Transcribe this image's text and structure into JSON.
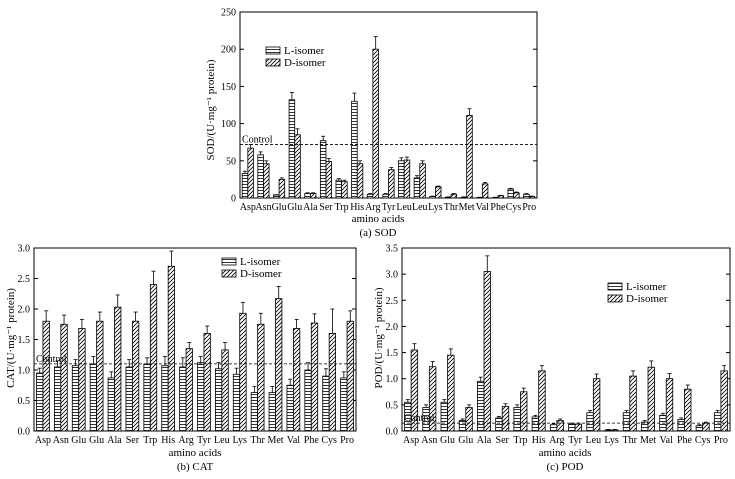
{
  "figure": {
    "legend_l": "L-isomer",
    "legend_d": "D-isomer",
    "control_label": "Control",
    "xlabel": "amino acids"
  },
  "colors": {
    "axis": "#000000",
    "bar_fill": "#ffffff",
    "control_line": "#000000"
  },
  "chart_data": [
    {
      "id": "sod",
      "type": "bar",
      "title": "(a) SOD",
      "xlabel": "amino acids",
      "ylabel": "SOD/(U·mg⁻¹ protein)",
      "ylim": [
        0,
        250
      ],
      "yticks": [
        0,
        50,
        100,
        150,
        200,
        250
      ],
      "ytick_labels": [
        "0",
        "50",
        "100",
        "150",
        "200",
        "250"
      ],
      "control": 72,
      "legend_position": "top-center",
      "categories": [
        "Asp",
        "Asn",
        "Glu",
        "Glu",
        "Ala",
        "Ser",
        "Trp",
        "His",
        "Arg",
        "Tyr",
        "Leu",
        "Leu",
        "Lys",
        "Thr",
        "Met",
        "Val",
        "Phe",
        "Cys",
        "Pro"
      ],
      "series": [
        {
          "name": "L-isomer",
          "pattern": "horizontal",
          "values": [
            33,
            58,
            4,
            132,
            6,
            77,
            24,
            130,
            5,
            5,
            50,
            27,
            2,
            1,
            1,
            0.5,
            0.5,
            12,
            5
          ],
          "errors": [
            3,
            4,
            0.5,
            10,
            1,
            6,
            2,
            11,
            1,
            1,
            4,
            3,
            0.5,
            0.5,
            0.5,
            0.5,
            0.5,
            1,
            1
          ]
        },
        {
          "name": "D-isomer",
          "pattern": "diagonal",
          "values": [
            67,
            46,
            25,
            85,
            6,
            49,
            22,
            46,
            200,
            38,
            51,
            46,
            15,
            5,
            111,
            19,
            3,
            7,
            2
          ],
          "errors": [
            5,
            4,
            2,
            8,
            1,
            4,
            2,
            4,
            17,
            3,
            4,
            4,
            1,
            1,
            9,
            2,
            0.5,
            1,
            0.5
          ]
        }
      ]
    },
    {
      "id": "cat",
      "type": "bar",
      "title": "(b) CAT",
      "xlabel": "amino acids",
      "ylabel": "CAT/(U·mg⁻¹ protein)",
      "ylim": [
        0,
        3.0
      ],
      "yticks": [
        0,
        0.5,
        1.0,
        1.5,
        2.0,
        2.5,
        3.0
      ],
      "ytick_labels": [
        "0.0",
        "0.5",
        "1.0",
        "1.5",
        "2.0",
        "2.5",
        "3.0"
      ],
      "control": 1.1,
      "legend_position": "top-right",
      "categories": [
        "Asp",
        "Asn",
        "Glu",
        "Glu",
        "Ala",
        "Ser",
        "Trp",
        "His",
        "Arg",
        "Tyr",
        "Leu",
        "Lys",
        "Thr",
        "Met",
        "Val",
        "Phe",
        "Cys",
        "Pro"
      ],
      "series": [
        {
          "name": "L-isomer",
          "pattern": "horizontal",
          "values": [
            0.95,
            1.05,
            1.07,
            1.1,
            0.87,
            1.05,
            1.1,
            1.07,
            1.05,
            1.12,
            1.02,
            0.93,
            0.63,
            0.63,
            0.75,
            1.0,
            0.9,
            0.87
          ],
          "errors": [
            0.08,
            0.1,
            0.1,
            0.12,
            0.1,
            0.12,
            0.1,
            0.15,
            0.15,
            0.1,
            0.1,
            0.1,
            0.1,
            0.1,
            0.1,
            0.12,
            0.12,
            0.1
          ]
        },
        {
          "name": "D-isomer",
          "pattern": "diagonal",
          "values": [
            1.8,
            1.75,
            1.68,
            1.8,
            2.03,
            1.8,
            2.4,
            2.7,
            1.35,
            1.6,
            1.33,
            1.93,
            1.75,
            2.17,
            1.68,
            1.77,
            1.6,
            1.8
          ],
          "errors": [
            0.17,
            0.15,
            0.15,
            0.15,
            0.2,
            0.15,
            0.22,
            0.25,
            0.1,
            0.12,
            0.12,
            0.18,
            0.18,
            0.2,
            0.15,
            0.15,
            0.4,
            0.17
          ]
        }
      ]
    },
    {
      "id": "pod",
      "type": "bar",
      "title": "(c) POD",
      "xlabel": "amino acids",
      "ylabel": "POD/(U·mg⁻¹ protein)",
      "ylim": [
        0,
        3.5
      ],
      "yticks": [
        0,
        0.5,
        1.0,
        1.5,
        2.0,
        2.5,
        3.0,
        3.5
      ],
      "ytick_labels": [
        "0.0",
        "0.5",
        "1.0",
        "1.5",
        "2.0",
        "2.5",
        "3.0",
        "3.5"
      ],
      "control": 0.15,
      "legend_position": "top-right",
      "categories": [
        "Asp",
        "Asn",
        "Glu",
        "Glu",
        "Ala",
        "Ser",
        "Trp",
        "His",
        "Arg",
        "Tyr",
        "Leu",
        "Lys",
        "Thr",
        "Met",
        "Val",
        "Phe",
        "Cys",
        "Pro"
      ],
      "series": [
        {
          "name": "L-isomer",
          "pattern": "horizontal",
          "values": [
            0.55,
            0.45,
            0.55,
            0.2,
            0.95,
            0.25,
            0.45,
            0.27,
            0.12,
            0.13,
            0.35,
            0.02,
            0.35,
            0.17,
            0.3,
            0.22,
            0.1,
            0.35
          ],
          "errors": [
            0.05,
            0.05,
            0.05,
            0.03,
            0.08,
            0.03,
            0.05,
            0.03,
            0.02,
            0.02,
            0.04,
            0.01,
            0.04,
            0.03,
            0.04,
            0.03,
            0.02,
            0.04
          ]
        },
        {
          "name": "D-isomer",
          "pattern": "diagonal",
          "values": [
            1.55,
            1.23,
            1.45,
            0.45,
            3.05,
            0.47,
            0.75,
            1.15,
            0.2,
            0.13,
            1.0,
            0.02,
            1.05,
            1.22,
            1.0,
            0.8,
            0.15,
            1.15
          ],
          "errors": [
            0.12,
            0.1,
            0.12,
            0.05,
            0.3,
            0.05,
            0.07,
            0.1,
            0.03,
            0.02,
            0.09,
            0.01,
            0.1,
            0.12,
            0.1,
            0.08,
            0.02,
            0.1
          ]
        }
      ]
    }
  ]
}
